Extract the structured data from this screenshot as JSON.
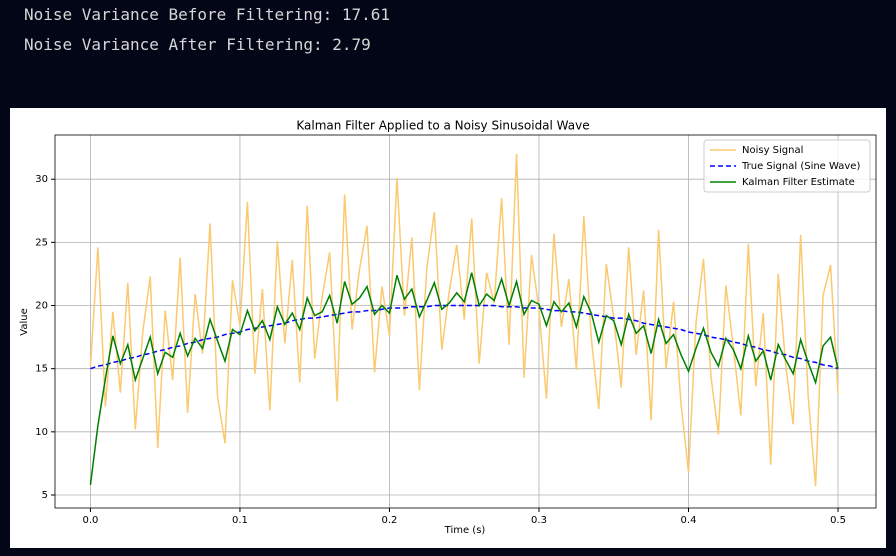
{
  "output": {
    "lines": [
      "Noise Variance Before Filtering: 17.61",
      "Noise Variance After Filtering: 2.79"
    ]
  },
  "chart_data": {
    "type": "line",
    "title": "Kalman Filter Applied to a Noisy Sinusoidal Wave",
    "x_label": "Time (s)",
    "y_label": "Value",
    "grid": true,
    "legend": "upper right",
    "xlim": [
      -0.0237,
      0.5254
    ],
    "ylim": [
      3.97,
      33.5
    ],
    "xticks": [
      {
        "value": 0,
        "label": "0.0"
      },
      {
        "value": 0.1,
        "label": "0.1"
      },
      {
        "value": 0.2,
        "label": "0.2"
      },
      {
        "value": 0.3,
        "label": "0.3"
      },
      {
        "value": 0.4,
        "label": "0.4"
      },
      {
        "value": 0.5,
        "label": "0.5"
      }
    ],
    "yticks": [
      5,
      10,
      15,
      20,
      25,
      30
    ],
    "x": [
      0,
      0.005,
      0.01,
      0.015,
      0.02,
      0.025,
      0.03,
      0.035,
      0.04,
      0.045,
      0.05,
      0.055,
      0.06,
      0.065,
      0.07,
      0.075,
      0.08,
      0.085,
      0.09,
      0.095,
      0.1,
      0.105,
      0.11,
      0.115,
      0.12,
      0.125,
      0.13,
      0.135,
      0.14,
      0.145,
      0.15,
      0.155,
      0.16,
      0.165,
      0.17,
      0.175,
      0.18,
      0.185,
      0.19,
      0.195,
      0.2,
      0.205,
      0.21,
      0.215,
      0.22,
      0.225,
      0.23,
      0.235,
      0.24,
      0.245,
      0.25,
      0.255,
      0.26,
      0.265,
      0.27,
      0.275,
      0.28,
      0.285,
      0.29,
      0.295,
      0.3,
      0.305,
      0.31,
      0.315,
      0.32,
      0.325,
      0.33,
      0.335,
      0.34,
      0.345,
      0.35,
      0.355,
      0.36,
      0.365,
      0.37,
      0.375,
      0.38,
      0.385,
      0.39,
      0.395,
      0.4,
      0.405,
      0.41,
      0.415,
      0.42,
      0.425,
      0.43,
      0.435,
      0.44,
      0.445,
      0.45,
      0.455,
      0.46,
      0.465,
      0.47,
      0.475,
      0.48,
      0.485,
      0.49,
      0.495,
      0.5
    ],
    "series": [
      {
        "name": "Noisy Signal",
        "color": "#fbc96f",
        "linestyle": "solid",
        "values": [
          15.2,
          24.6,
          12.0,
          19.5,
          13.1,
          21.8,
          10.2,
          17.9,
          22.3,
          8.7,
          19.6,
          14.1,
          23.8,
          11.5,
          20.9,
          16.2,
          26.5,
          12.8,
          9.1,
          22.0,
          18.4,
          28.2,
          14.6,
          21.3,
          11.7,
          25.1,
          17.0,
          23.6,
          13.9,
          27.9,
          15.8,
          20.7,
          24.2,
          12.4,
          28.8,
          18.1,
          22.9,
          26.3,
          14.7,
          21.5,
          17.6,
          30.1,
          19.2,
          25.4,
          13.3,
          23.0,
          27.4,
          16.5,
          21.1,
          24.8,
          18.9,
          26.9,
          15.4,
          22.6,
          20.2,
          28.5,
          16.9,
          32.0,
          14.3,
          24.0,
          19.7,
          12.6,
          25.7,
          18.3,
          22.1,
          14.9,
          27.1,
          17.4,
          11.8,
          23.3,
          19.0,
          13.5,
          24.6,
          16.1,
          21.2,
          10.9,
          26.0,
          15.0,
          20.3,
          12.2,
          6.8,
          18.6,
          23.7,
          14.4,
          9.8,
          21.6,
          16.7,
          11.3,
          24.9,
          13.6,
          19.4,
          7.4,
          22.5,
          15.3,
          10.6,
          25.6,
          12.9,
          5.7,
          20.8,
          23.2,
          13.0
        ]
      },
      {
        "name": "True Signal (Sine Wave)",
        "color": "#0000ff",
        "linestyle": "dashed",
        "values": [
          15.0,
          15.2,
          15.3,
          15.5,
          15.6,
          15.8,
          15.9,
          16.1,
          16.2,
          16.4,
          16.5,
          16.7,
          16.8,
          17.0,
          17.1,
          17.3,
          17.4,
          17.5,
          17.7,
          17.8,
          17.9,
          18.1,
          18.2,
          18.3,
          18.4,
          18.5,
          18.6,
          18.8,
          18.9,
          19.0,
          19.0,
          19.1,
          19.2,
          19.3,
          19.4,
          19.5,
          19.5,
          19.6,
          19.6,
          19.7,
          19.8,
          19.8,
          19.8,
          19.9,
          19.9,
          19.9,
          20.0,
          20.0,
          20.0,
          20.0,
          20.0,
          20.0,
          20.0,
          20.0,
          20.0,
          19.9,
          19.9,
          19.9,
          19.8,
          19.8,
          19.8,
          19.7,
          19.6,
          19.6,
          19.5,
          19.5,
          19.4,
          19.3,
          19.2,
          19.1,
          19.0,
          19.0,
          18.9,
          18.8,
          18.6,
          18.5,
          18.4,
          18.3,
          18.2,
          18.1,
          17.9,
          17.8,
          17.7,
          17.5,
          17.4,
          17.3,
          17.1,
          17.0,
          16.8,
          16.7,
          16.5,
          16.4,
          16.2,
          16.1,
          15.9,
          15.8,
          15.6,
          15.5,
          15.3,
          15.2,
          15.0
        ]
      },
      {
        "name": "Kalman Filter Estimate",
        "color": "#008000",
        "linestyle": "solid",
        "values": [
          5.8,
          10.5,
          14.2,
          17.6,
          15.4,
          16.9,
          14.1,
          15.8,
          17.5,
          14.6,
          16.3,
          15.9,
          17.8,
          16.0,
          17.4,
          16.6,
          18.9,
          17.2,
          15.6,
          18.1,
          17.7,
          19.6,
          18.0,
          18.8,
          17.3,
          19.9,
          18.5,
          19.4,
          18.1,
          20.6,
          19.2,
          19.5,
          20.8,
          18.6,
          21.9,
          20.1,
          20.6,
          21.5,
          19.3,
          20.0,
          19.4,
          22.4,
          20.5,
          21.3,
          19.1,
          20.4,
          21.8,
          19.7,
          20.2,
          21.0,
          20.3,
          22.6,
          20.0,
          20.9,
          20.4,
          22.1,
          20.0,
          21.9,
          19.3,
          20.4,
          20.1,
          18.4,
          20.3,
          19.5,
          20.2,
          18.3,
          20.7,
          19.4,
          17.1,
          19.2,
          18.8,
          16.9,
          19.3,
          17.8,
          18.4,
          16.2,
          18.9,
          17.0,
          17.7,
          16.1,
          14.8,
          16.6,
          18.2,
          16.3,
          15.2,
          17.4,
          16.5,
          15.0,
          17.6,
          15.6,
          16.4,
          14.1,
          16.9,
          15.7,
          14.6,
          17.3,
          15.5,
          13.9,
          16.8,
          17.5,
          15.0
        ]
      }
    ]
  }
}
